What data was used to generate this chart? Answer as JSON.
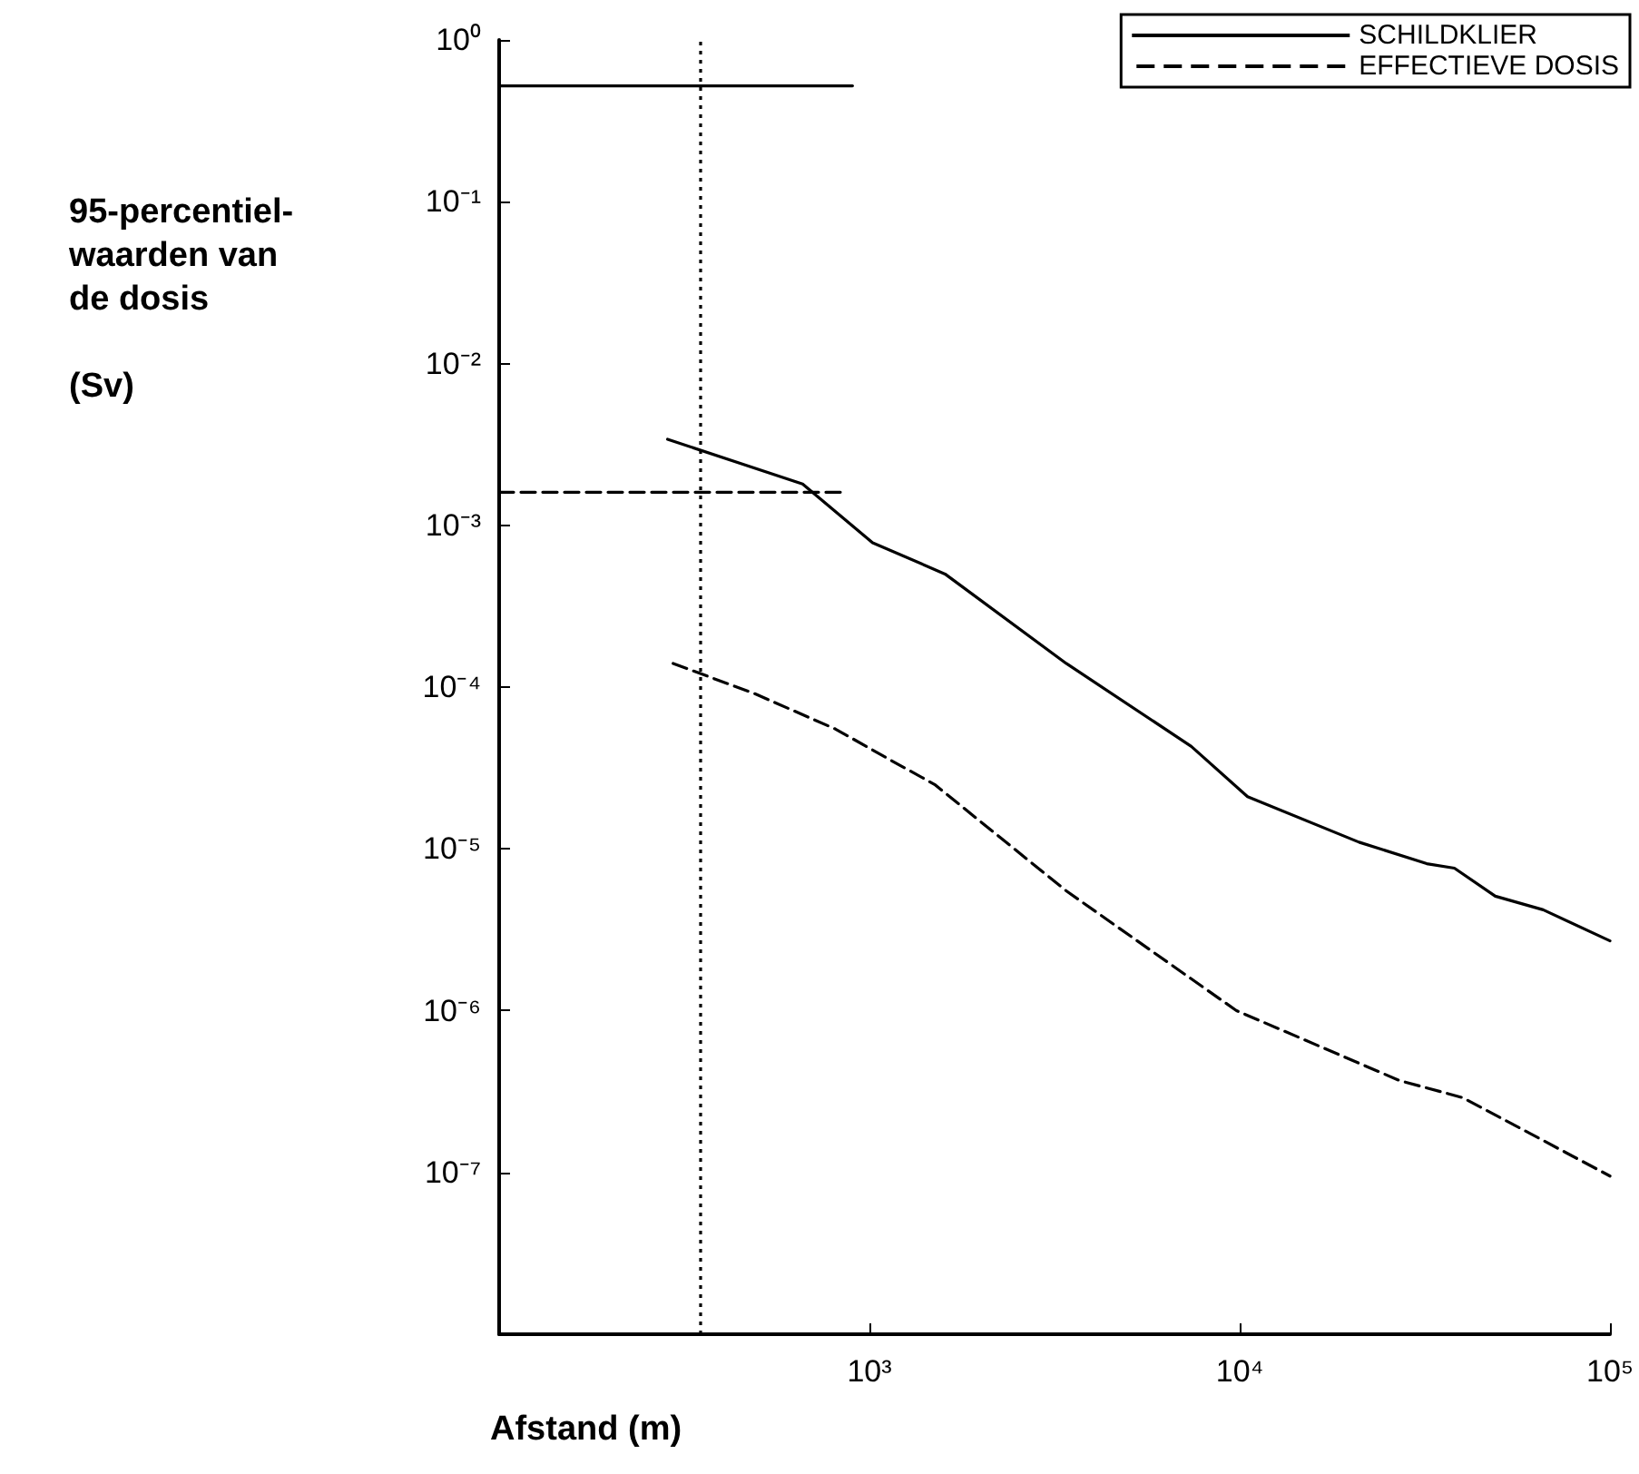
{
  "chart_data": {
    "type": "line",
    "xlabel": "Afstand (m)",
    "ylabel": "95-percentiel-\nwaarden van\nde dosis\n\n(Sv)",
    "log": "xy",
    "grid": false,
    "legend": "top right",
    "marker": "none",
    "xlim": [
      100,
      100000
    ],
    "ylim": [
      1e-08,
      1
    ],
    "xticks": [
      {
        "value": 100,
        "label": null
      },
      {
        "value": 1000,
        "label": "10³"
      },
      {
        "value": 10000,
        "label": "10⁴"
      },
      {
        "value": 100000,
        "label": "10⁵"
      }
    ],
    "yticks": [
      {
        "value": 1e-08,
        "label": null
      },
      {
        "value": 1e-07,
        "label": "10⁻⁷"
      },
      {
        "value": 1e-06,
        "label": "10⁻⁶"
      },
      {
        "value": 1e-05,
        "label": "10⁻⁵"
      },
      {
        "value": 0.0001,
        "label": "10⁻⁴"
      },
      {
        "value": 0.001,
        "label": "10⁻³"
      },
      {
        "value": 0.01,
        "label": "10⁻²"
      },
      {
        "value": 0.1,
        "label": "10⁻¹"
      },
      {
        "value": 1,
        "label": "10⁰"
      }
    ],
    "ref_lines": [
      {
        "axis": "x",
        "value": 350,
        "label": null,
        "color": "#000000",
        "line_style": "dotted"
      }
    ],
    "series": [
      {
        "name": "SCHILDKLIER",
        "color": "#000000",
        "line_style": "solid",
        "x": [
          285,
          660,
          1020,
          1600,
          3400,
          7400,
          10500,
          21000,
          32000,
          38000,
          49000,
          66000,
          100000
        ],
        "values": [
          0.0034,
          0.0018,
          0.00078,
          0.0005,
          0.00014,
          4.3e-05,
          2.1e-05,
          1.1e-05,
          8.1e-06,
          7.6e-06,
          5.1e-06,
          4.2e-06,
          2.7e-06
        ]
      },
      {
        "name": "EFFECTIEVE DOSIS",
        "color": "#000000",
        "line_style": "dashed",
        "x": [
          295,
          490,
          810,
          1150,
          1500,
          3400,
          9800,
          27000,
          40000,
          100000
        ],
        "values": [
          0.00014,
          9.1e-05,
          5.5e-05,
          3.5e-05,
          2.5e-05,
          5.5e-06,
          1e-06,
          3.7e-07,
          2.9e-07,
          9.5e-08
        ]
      },
      {
        "color": "#000000",
        "line_style": "solid",
        "x": [
          100,
          900
        ],
        "values": [
          0.52,
          0.52
        ]
      },
      {
        "color": "#000000",
        "line_style": "dashed",
        "x": [
          100,
          870
        ],
        "values": [
          0.0016,
          0.0016
        ]
      }
    ]
  }
}
